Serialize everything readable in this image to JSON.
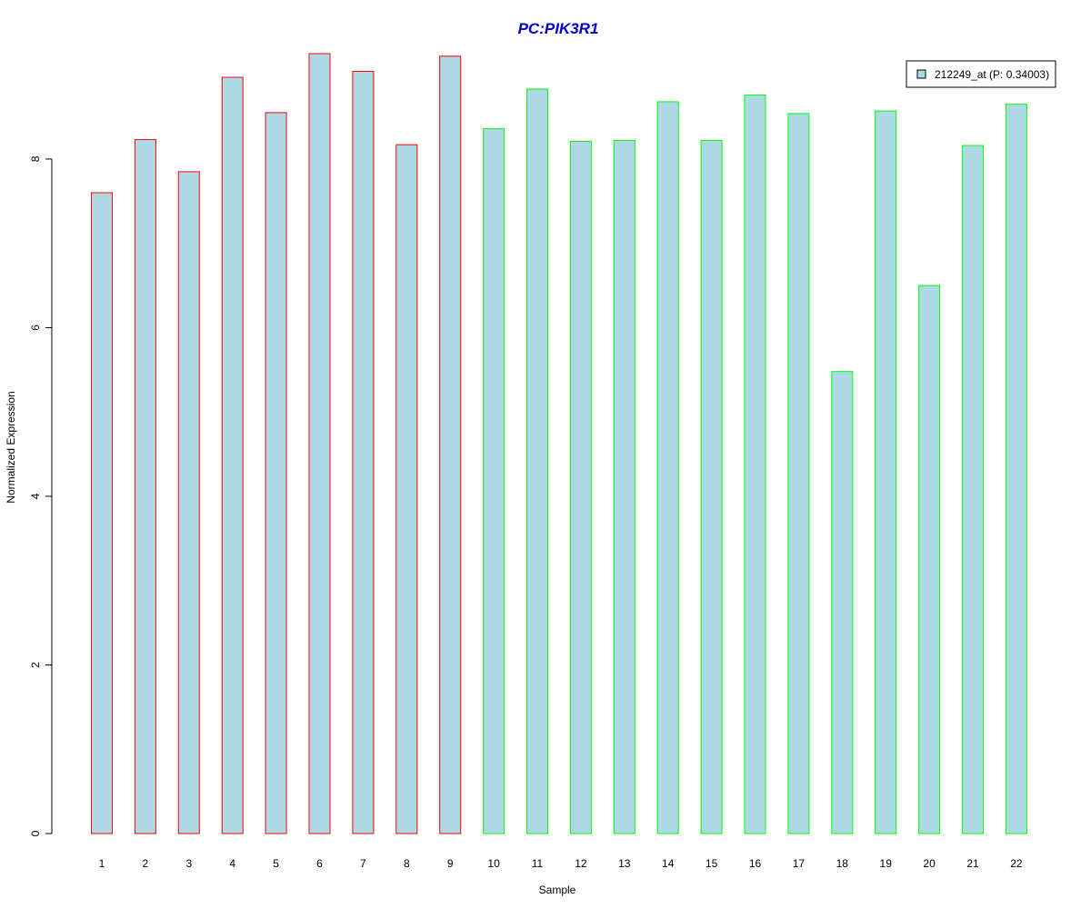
{
  "chart_data": {
    "type": "bar",
    "title": "PC:PIK3R1",
    "title_color": "#0000CC",
    "xlabel": "Sample",
    "ylabel": "Normalized Expression",
    "categories": [
      "1",
      "2",
      "3",
      "4",
      "5",
      "6",
      "7",
      "8",
      "9",
      "10",
      "11",
      "12",
      "13",
      "14",
      "15",
      "16",
      "17",
      "18",
      "19",
      "20",
      "21",
      "22"
    ],
    "series": [
      {
        "name": "212249_at (P: 0.34003)",
        "fill_color": "#ADD8E6",
        "values": [
          7.6,
          8.23,
          7.85,
          8.97,
          8.55,
          9.25,
          9.04,
          8.17,
          9.22,
          8.36,
          8.83,
          8.21,
          8.22,
          8.68,
          8.22,
          8.76,
          8.54,
          5.48,
          8.57,
          6.5,
          8.16,
          8.65
        ]
      }
    ],
    "bar_border_colors": [
      "#FF0000",
      "#FF0000",
      "#FF0000",
      "#FF0000",
      "#FF0000",
      "#FF0000",
      "#FF0000",
      "#FF0000",
      "#FF0000",
      "#00FF00",
      "#00FF00",
      "#00FF00",
      "#00FF00",
      "#00FF00",
      "#00FF00",
      "#00FF00",
      "#00FF00",
      "#00FF00",
      "#00FF00",
      "#00FF00",
      "#00FF00",
      "#00FF00"
    ],
    "yticks": [
      0,
      2,
      4,
      6,
      8
    ],
    "ylim": [
      0,
      9.25
    ],
    "grid": false,
    "legend_position": "top-right"
  }
}
